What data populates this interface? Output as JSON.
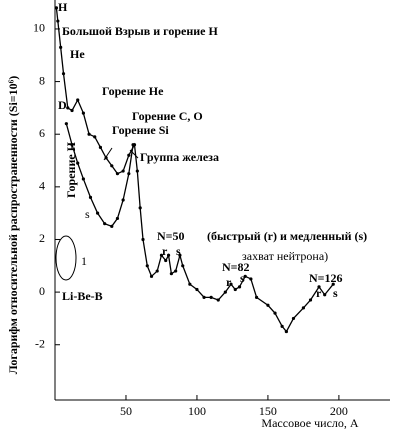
{
  "chart_data": {
    "type": "line",
    "x_label": "Массовое число, А",
    "y_label": "Логарифм относительной распространенности (Si=10⁶)",
    "xlim": [
      0,
      236
    ],
    "ylim": [
      -4.1,
      11.1
    ],
    "xticks": [
      50,
      100,
      150,
      200
    ],
    "yticks": [
      -2,
      0,
      2,
      4,
      6,
      8,
      10
    ],
    "series": [
      {
        "color": "#000000",
        "x": [
          1,
          2,
          4,
          6,
          9,
          12,
          16,
          20,
          24,
          28,
          32,
          36,
          40,
          44,
          48,
          52,
          56,
          58,
          60,
          62,
          65,
          68,
          72,
          75,
          78,
          80,
          82,
          85,
          88,
          90,
          95,
          100,
          105,
          110,
          115,
          120,
          124,
          127,
          130,
          134,
          138,
          142,
          150,
          155,
          160,
          163,
          168,
          175,
          180,
          186,
          190,
          196
        ],
        "values": [
          10.8,
          10.3,
          9.3,
          8.3,
          7.0,
          6.9,
          7.3,
          6.8,
          6.0,
          5.9,
          5.5,
          5.1,
          4.8,
          4.5,
          4.6,
          5.2,
          5.6,
          4.6,
          3.2,
          2.0,
          1.0,
          0.6,
          0.8,
          1.4,
          1.2,
          1.4,
          0.7,
          0.8,
          1.4,
          1.0,
          0.3,
          0.1,
          -0.2,
          -0.2,
          -0.3,
          0.0,
          0.3,
          0.1,
          0.2,
          0.6,
          0.5,
          -0.2,
          -0.5,
          -0.8,
          -1.3,
          -1.5,
          -1.0,
          -0.6,
          -0.3,
          0.2,
          -0.1,
          0.3
        ]
      },
      {
        "color": "#000000",
        "x": [
          8,
          12,
          16,
          20,
          25,
          30,
          35,
          40,
          44,
          48,
          52,
          55
        ],
        "values": [
          6.4,
          5.6,
          4.9,
          4.3,
          3.6,
          3.0,
          2.6,
          2.5,
          2.8,
          3.5,
          4.5,
          5.6
        ]
      }
    ],
    "annotations": [
      "H",
      "Большой Взрыв и горение H",
      "He",
      "D",
      "Горение He",
      "Горение C, O",
      "Горение Si",
      "Группа железа",
      "Горение H",
      "s",
      "N=50",
      "r",
      "s",
      "(быстрый (r) и медленный (s)",
      "захват нейтрона)",
      "N=82",
      "r",
      "s",
      "N=126",
      "r",
      "s",
      "1",
      "Li-Be-B"
    ]
  }
}
